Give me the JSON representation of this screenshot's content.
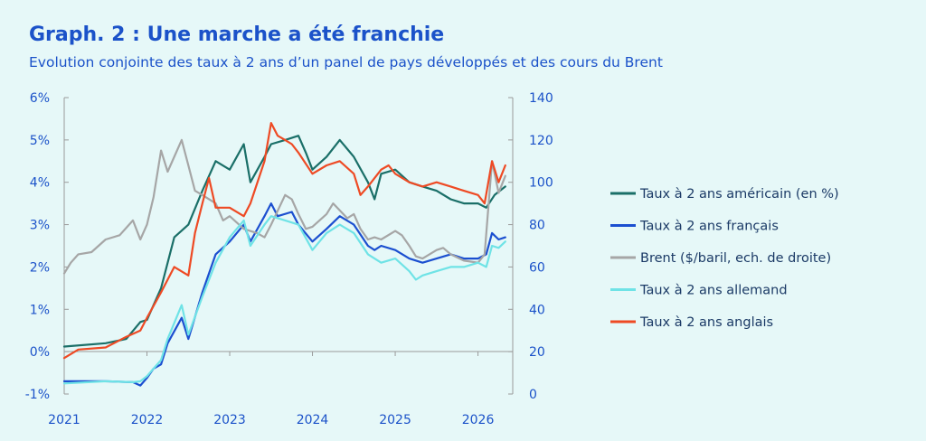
{
  "title": "Graph. 2 : Une marche a été franchie",
  "subtitle": "Evolution conjointe des taux à 2 ans d’un panel de pays développés et des cours du Brent",
  "chart_data": {
    "type": "line",
    "x_ticks": [
      "2021",
      "2022",
      "2023",
      "2024",
      "2025",
      "2026"
    ],
    "ylim_left": [
      -1,
      6
    ],
    "yticks_left": [
      "-1%",
      "0%",
      "1%",
      "2%",
      "3%",
      "4%",
      "5%",
      "6%"
    ],
    "ylim_right": [
      0,
      140
    ],
    "yticks_right": [
      "0",
      "20",
      "40",
      "60",
      "80",
      "100",
      "120",
      "140"
    ],
    "grid": false,
    "legend_position": "right",
    "series": [
      {
        "name": "Taux à 2 ans américain (en %)",
        "axis": "left",
        "color": "#1a6f68",
        "points": [
          [
            2021.0,
            0.12
          ],
          [
            2021.5,
            0.2
          ],
          [
            2021.75,
            0.3
          ],
          [
            2021.92,
            0.7
          ],
          [
            2022.0,
            0.75
          ],
          [
            2022.17,
            1.5
          ],
          [
            2022.33,
            2.7
          ],
          [
            2022.5,
            3.0
          ],
          [
            2022.67,
            3.8
          ],
          [
            2022.83,
            4.5
          ],
          [
            2023.0,
            4.3
          ],
          [
            2023.17,
            4.9
          ],
          [
            2023.25,
            4.0
          ],
          [
            2023.42,
            4.6
          ],
          [
            2023.5,
            4.9
          ],
          [
            2023.67,
            5.0
          ],
          [
            2023.83,
            5.1
          ],
          [
            2023.92,
            4.7
          ],
          [
            2024.0,
            4.3
          ],
          [
            2024.17,
            4.6
          ],
          [
            2024.33,
            5.0
          ],
          [
            2024.5,
            4.6
          ],
          [
            2024.67,
            4.0
          ],
          [
            2024.75,
            3.6
          ],
          [
            2024.83,
            4.2
          ],
          [
            2025.0,
            4.3
          ],
          [
            2025.17,
            4.0
          ],
          [
            2025.33,
            3.9
          ],
          [
            2025.5,
            3.8
          ],
          [
            2025.67,
            3.6
          ],
          [
            2025.83,
            3.5
          ],
          [
            2026.0,
            3.5
          ],
          [
            2026.1,
            3.4
          ],
          [
            2026.2,
            3.7
          ],
          [
            2026.33,
            3.9
          ]
        ]
      },
      {
        "name": "Taux à 2 ans français",
        "axis": "left",
        "color": "#1b4fd0",
        "points": [
          [
            2021.0,
            -0.7
          ],
          [
            2021.5,
            -0.7
          ],
          [
            2021.83,
            -0.72
          ],
          [
            2021.92,
            -0.8
          ],
          [
            2022.0,
            -0.62
          ],
          [
            2022.08,
            -0.4
          ],
          [
            2022.17,
            -0.3
          ],
          [
            2022.25,
            0.2
          ],
          [
            2022.42,
            0.8
          ],
          [
            2022.5,
            0.3
          ],
          [
            2022.67,
            1.4
          ],
          [
            2022.83,
            2.3
          ],
          [
            2023.0,
            2.6
          ],
          [
            2023.17,
            3.0
          ],
          [
            2023.25,
            2.6
          ],
          [
            2023.42,
            3.2
          ],
          [
            2023.5,
            3.5
          ],
          [
            2023.58,
            3.2
          ],
          [
            2023.75,
            3.3
          ],
          [
            2023.83,
            3.0
          ],
          [
            2024.0,
            2.6
          ],
          [
            2024.17,
            2.9
          ],
          [
            2024.33,
            3.2
          ],
          [
            2024.5,
            3.0
          ],
          [
            2024.67,
            2.5
          ],
          [
            2024.75,
            2.4
          ],
          [
            2024.83,
            2.5
          ],
          [
            2025.0,
            2.4
          ],
          [
            2025.17,
            2.2
          ],
          [
            2025.33,
            2.1
          ],
          [
            2025.5,
            2.2
          ],
          [
            2025.67,
            2.3
          ],
          [
            2025.83,
            2.2
          ],
          [
            2026.0,
            2.2
          ],
          [
            2026.1,
            2.3
          ],
          [
            2026.17,
            2.8
          ],
          [
            2026.25,
            2.65
          ],
          [
            2026.33,
            2.7
          ]
        ]
      },
      {
        "name": "Brent ($/baril, ech. de droite)",
        "axis": "right",
        "color": "#a6a6a6",
        "points": [
          [
            2021.0,
            57
          ],
          [
            2021.08,
            62
          ],
          [
            2021.17,
            66
          ],
          [
            2021.33,
            67
          ],
          [
            2021.5,
            73
          ],
          [
            2021.67,
            75
          ],
          [
            2021.83,
            82
          ],
          [
            2021.92,
            73
          ],
          [
            2022.0,
            80
          ],
          [
            2022.08,
            93
          ],
          [
            2022.17,
            115
          ],
          [
            2022.25,
            105
          ],
          [
            2022.42,
            120
          ],
          [
            2022.5,
            108
          ],
          [
            2022.58,
            96
          ],
          [
            2022.67,
            94
          ],
          [
            2022.83,
            90
          ],
          [
            2022.92,
            82
          ],
          [
            2023.0,
            84
          ],
          [
            2023.17,
            78
          ],
          [
            2023.33,
            76
          ],
          [
            2023.42,
            74
          ],
          [
            2023.5,
            80
          ],
          [
            2023.67,
            94
          ],
          [
            2023.75,
            92
          ],
          [
            2023.83,
            85
          ],
          [
            2023.92,
            78
          ],
          [
            2024.0,
            79
          ],
          [
            2024.17,
            85
          ],
          [
            2024.25,
            90
          ],
          [
            2024.42,
            83
          ],
          [
            2024.5,
            85
          ],
          [
            2024.58,
            78
          ],
          [
            2024.67,
            73
          ],
          [
            2024.75,
            74
          ],
          [
            2024.83,
            73
          ],
          [
            2025.0,
            77
          ],
          [
            2025.08,
            75
          ],
          [
            2025.17,
            70
          ],
          [
            2025.25,
            65
          ],
          [
            2025.33,
            64
          ],
          [
            2025.5,
            68
          ],
          [
            2025.58,
            69
          ],
          [
            2025.67,
            66
          ],
          [
            2025.83,
            63
          ],
          [
            2026.0,
            62
          ],
          [
            2026.08,
            66
          ],
          [
            2026.17,
            110
          ],
          [
            2026.25,
            95
          ],
          [
            2026.33,
            103
          ]
        ]
      },
      {
        "name": "Taux à 2 ans allemand",
        "axis": "left",
        "color": "#6fe3e6",
        "points": [
          [
            2021.0,
            -0.75
          ],
          [
            2021.5,
            -0.7
          ],
          [
            2021.83,
            -0.72
          ],
          [
            2021.92,
            -0.7
          ],
          [
            2022.0,
            -0.58
          ],
          [
            2022.08,
            -0.4
          ],
          [
            2022.17,
            -0.2
          ],
          [
            2022.25,
            0.3
          ],
          [
            2022.42,
            1.1
          ],
          [
            2022.5,
            0.4
          ],
          [
            2022.67,
            1.3
          ],
          [
            2022.83,
            2.1
          ],
          [
            2023.0,
            2.7
          ],
          [
            2023.17,
            3.1
          ],
          [
            2023.25,
            2.5
          ],
          [
            2023.42,
            3.0
          ],
          [
            2023.5,
            3.2
          ],
          [
            2023.67,
            3.1
          ],
          [
            2023.83,
            3.0
          ],
          [
            2024.0,
            2.4
          ],
          [
            2024.17,
            2.8
          ],
          [
            2024.33,
            3.0
          ],
          [
            2024.5,
            2.8
          ],
          [
            2024.67,
            2.3
          ],
          [
            2024.75,
            2.2
          ],
          [
            2024.83,
            2.1
          ],
          [
            2025.0,
            2.2
          ],
          [
            2025.17,
            1.9
          ],
          [
            2025.25,
            1.7
          ],
          [
            2025.33,
            1.8
          ],
          [
            2025.5,
            1.9
          ],
          [
            2025.67,
            2.0
          ],
          [
            2025.83,
            2.0
          ],
          [
            2026.0,
            2.1
          ],
          [
            2026.1,
            2.0
          ],
          [
            2026.17,
            2.5
          ],
          [
            2026.25,
            2.45
          ],
          [
            2026.33,
            2.6
          ]
        ]
      },
      {
        "name": "Taux à 2 ans anglais",
        "axis": "left",
        "color": "#ee4a24",
        "points": [
          [
            2021.0,
            -0.15
          ],
          [
            2021.17,
            0.05
          ],
          [
            2021.5,
            0.1
          ],
          [
            2021.75,
            0.35
          ],
          [
            2021.92,
            0.5
          ],
          [
            2022.0,
            0.8
          ],
          [
            2022.17,
            1.4
          ],
          [
            2022.33,
            2.0
          ],
          [
            2022.5,
            1.8
          ],
          [
            2022.58,
            2.8
          ],
          [
            2022.67,
            3.5
          ],
          [
            2022.75,
            4.1
          ],
          [
            2022.83,
            3.4
          ],
          [
            2023.0,
            3.4
          ],
          [
            2023.17,
            3.2
          ],
          [
            2023.25,
            3.5
          ],
          [
            2023.42,
            4.5
          ],
          [
            2023.5,
            5.4
          ],
          [
            2023.58,
            5.1
          ],
          [
            2023.67,
            5.0
          ],
          [
            2023.75,
            4.9
          ],
          [
            2023.83,
            4.7
          ],
          [
            2024.0,
            4.2
          ],
          [
            2024.17,
            4.4
          ],
          [
            2024.33,
            4.5
          ],
          [
            2024.5,
            4.2
          ],
          [
            2024.58,
            3.7
          ],
          [
            2024.67,
            3.9
          ],
          [
            2024.83,
            4.3
          ],
          [
            2024.92,
            4.4
          ],
          [
            2025.0,
            4.2
          ],
          [
            2025.17,
            4.0
          ],
          [
            2025.33,
            3.9
          ],
          [
            2025.5,
            4.0
          ],
          [
            2025.67,
            3.9
          ],
          [
            2025.83,
            3.8
          ],
          [
            2026.0,
            3.7
          ],
          [
            2026.08,
            3.5
          ],
          [
            2026.17,
            4.5
          ],
          [
            2026.25,
            4.0
          ],
          [
            2026.33,
            4.4
          ]
        ]
      }
    ]
  }
}
